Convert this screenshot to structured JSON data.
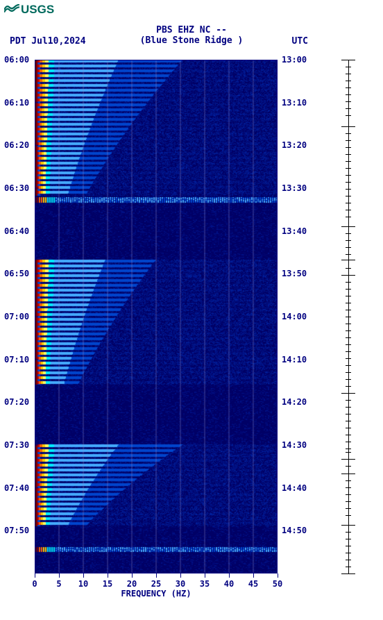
{
  "logo_text": "USGS",
  "title_line1": "PBS EHZ NC --",
  "title_line2": "(Blue Stone Ridge )",
  "date": "PDT  Jul10,2024",
  "utc": "UTC",
  "x_label": "FREQUENCY (HZ)",
  "x_range": [
    0,
    50
  ],
  "x_ticks": [
    0,
    5,
    10,
    15,
    20,
    25,
    30,
    35,
    40,
    45,
    50
  ],
  "y_left_ticks": [
    "06:00",
    "06:10",
    "06:20",
    "06:30",
    "06:40",
    "06:50",
    "07:00",
    "07:10",
    "07:20",
    "07:30",
    "07:40",
    "07:50"
  ],
  "y_right_ticks": [
    "13:00",
    "13:10",
    "13:20",
    "13:30",
    "13:40",
    "13:50",
    "14:00",
    "14:10",
    "14:20",
    "14:30",
    "14:40",
    "14:50"
  ],
  "y_time_span_min": 120,
  "grid_color": "#8888cc",
  "bg_color": "#000088",
  "colors": {
    "dark_red": "#770000",
    "red": "#cc0000",
    "orange": "#ff6600",
    "yellow": "#ffcc00",
    "lyellow": "#ffff66",
    "cyan": "#00eeff",
    "lblue": "#44aaff",
    "blue": "#0044cc",
    "dblue": "#001a88",
    "navy": "#000066"
  },
  "right_scale": {
    "major": [
      0,
      96,
      240,
      288,
      310,
      480,
      575,
      596,
      670,
      740
    ],
    "minor": [
      10,
      20,
      30,
      40,
      50,
      60,
      70,
      80,
      106,
      116,
      126,
      136,
      146,
      156,
      166,
      176,
      186,
      196,
      206,
      216,
      226,
      250,
      260,
      270,
      280,
      300,
      320,
      330,
      340,
      350,
      360,
      370,
      380,
      390,
      400,
      410,
      420,
      430,
      440,
      450,
      460,
      470,
      490,
      500,
      510,
      520,
      530,
      540,
      550,
      560,
      565,
      585,
      606,
      616,
      626,
      636,
      646,
      656,
      680,
      690,
      700,
      710,
      720,
      730
    ]
  },
  "bursts": [
    {
      "start": 0,
      "end": 32,
      "intensity": 1.0,
      "tail": 0.5
    },
    {
      "start": 34,
      "end": 35,
      "intensity": 0.7,
      "tail": 0.8,
      "dotted": true
    },
    {
      "start": 46,
      "end": 75,
      "intensity": 0.95,
      "tail": 0.4
    },
    {
      "start": 96,
      "end": 123,
      "intensity": 0.9,
      "tail": 0.35
    },
    {
      "start": 155,
      "end": 175,
      "intensity": 0.85,
      "tail": 0.3
    },
    {
      "start": 218,
      "end": 245,
      "intensity": 0.9,
      "tail": 0.3
    },
    {
      "start": 280,
      "end": 285,
      "intensity": 0.6,
      "tail": 0.7,
      "dotted": true
    }
  ]
}
